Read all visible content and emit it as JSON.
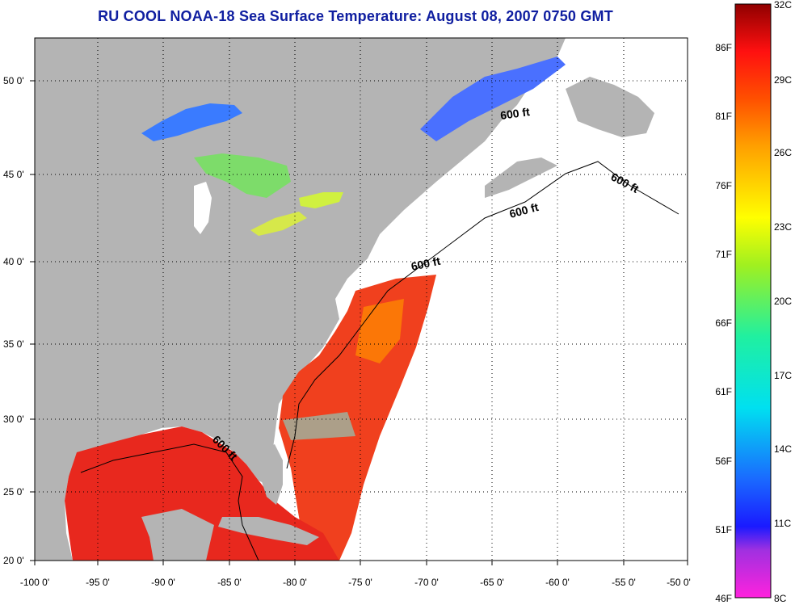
{
  "title": "RU COOL  NOAA-18  Sea Surface Temperature:  August 08, 2007 0750 GMT",
  "map": {
    "lon_ticks": [
      "-100 0'",
      "-95 0'",
      "-90 0'",
      "-85 0'",
      "-80 0'",
      "-75 0'",
      "-70 0'",
      "-65 0'",
      "-60 0'",
      "-55 0'",
      "-50 0'"
    ],
    "lat_ticks": [
      "20 0'",
      "25 0'",
      "30 0'",
      "35 0'",
      "40 0'",
      "45 0'",
      "50 0'"
    ],
    "contour_labels": [
      "600 ft",
      "600 ft",
      "600 ft",
      "600 ft",
      "600 ft"
    ],
    "colors": {
      "land": "#b4b4b4",
      "no_data": "#ffffff",
      "warm_water": "#e8281e",
      "grid": "#000000"
    }
  },
  "colorbar": {
    "celsius_labels": [
      "32C",
      "29C",
      "26C",
      "23C",
      "20C",
      "17C",
      "14C",
      "11C",
      "8C"
    ],
    "fahrenheit_labels": [
      "86F",
      "81F",
      "76F",
      "71F",
      "66F",
      "61F",
      "56F",
      "51F",
      "46F"
    ]
  }
}
